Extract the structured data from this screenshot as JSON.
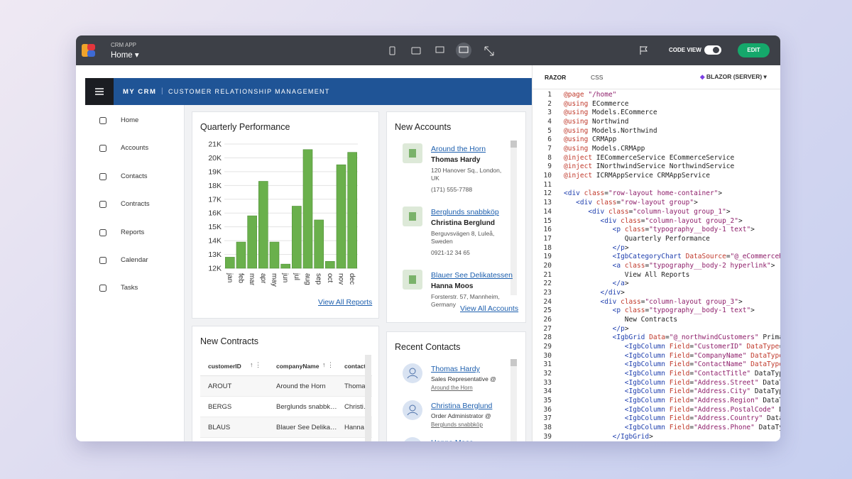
{
  "topbar": {
    "app_label": "CRM APP",
    "page": "Home",
    "code_view": "CODE VIEW",
    "edit": "EDIT"
  },
  "app": {
    "brand": "MY CRM",
    "subtitle": "CUSTOMER RELATIONSHIP MANAGEMENT",
    "nav": [
      "Home",
      "Accounts",
      "Contacts",
      "Contracts",
      "Reports",
      "Calendar",
      "Tasks"
    ]
  },
  "chart_data": {
    "type": "bar",
    "title": "Quarterly Performance",
    "categories": [
      "jan",
      "feb",
      "mar",
      "apr",
      "may",
      "jun",
      "jul",
      "aug",
      "sep",
      "oct",
      "nov",
      "dec"
    ],
    "values": [
      12800,
      13900,
      15800,
      18300,
      13900,
      12300,
      16500,
      20600,
      15500,
      12500,
      19500,
      20400
    ],
    "color": "#6ab04c",
    "ylim": [
      12000,
      21000
    ],
    "yticks": [
      {
        "value": 12000,
        "label": "12K"
      },
      {
        "value": 13000,
        "label": "13K"
      },
      {
        "value": 14000,
        "label": "14K"
      },
      {
        "value": 15000,
        "label": "15K"
      },
      {
        "value": 16000,
        "label": "16K"
      },
      {
        "value": 17000,
        "label": "17K"
      },
      {
        "value": 18000,
        "label": "18K"
      },
      {
        "value": 19000,
        "label": "19K"
      },
      {
        "value": 20000,
        "label": "20K"
      },
      {
        "value": 21000,
        "label": "21K"
      }
    ],
    "grid": true
  },
  "quarterly_card": {
    "link": "View All Reports"
  },
  "new_contracts": {
    "title": "New Contracts",
    "columns": [
      "customerID",
      "companyName",
      "contact"
    ],
    "rows": [
      [
        "AROUT",
        "Around the Horn",
        "Thomas Hardy"
      ],
      [
        "BERGS",
        "Berglunds snabbköp",
        "Christina Berglund"
      ],
      [
        "BLAUS",
        "Blauer See Delikatessen",
        "Hanna Moos"
      ]
    ]
  },
  "new_accounts": {
    "title": "New Accounts",
    "items": [
      {
        "company": "Around the Horn",
        "contact": "Thomas Hardy",
        "address": "120 Hanover Sq., London, UK",
        "phone": "(171) 555-7788"
      },
      {
        "company": "Berglunds snabbköp",
        "contact": "Christina Berglund",
        "address": "Berguvsvägen 8, Luleå, Sweden",
        "phone": "0921-12 34 65"
      },
      {
        "company": "Blauer See Delikatessen",
        "contact": "Hanna Moos",
        "address": "Forsterstr. 57, Mannheim, Germany"
      }
    ],
    "link": "View All Accounts"
  },
  "recent_contacts": {
    "title": "Recent Contacts",
    "items": [
      {
        "name": "Thomas Hardy",
        "title": "Sales Representative @",
        "company": "Around the Horn"
      },
      {
        "name": "Christina Berglund",
        "title": "Order Administrator @",
        "company": "Berglunds snabbköp"
      },
      {
        "name": "Hanna Moos"
      }
    ]
  },
  "code_panel": {
    "tabs": [
      "RAZOR",
      "CSS"
    ],
    "framework": "BLAZOR (SERVER)",
    "lines": [
      {
        "n": 1,
        "code": "@page \"/home\""
      },
      {
        "n": 2,
        "code": "@using ECommerce"
      },
      {
        "n": 3,
        "code": "@using Models.ECommerce"
      },
      {
        "n": 4,
        "code": "@using Northwind"
      },
      {
        "n": 5,
        "code": "@using Models.Northwind"
      },
      {
        "n": 6,
        "code": "@using CRMApp"
      },
      {
        "n": 7,
        "code": "@using Models.CRMApp"
      },
      {
        "n": 8,
        "code": "@inject IECommerceService ECommerceService"
      },
      {
        "n": 9,
        "code": "@inject INorthwindService NorthwindService"
      },
      {
        "n": 10,
        "code": "@inject ICRMAppService CRMAppService"
      },
      {
        "n": 11
      },
      {
        "n": 12,
        "code": "<div class=\"row-layout home-container\">"
      },
      {
        "n": 13,
        "code": "   <div class=\"row-layout group\">"
      },
      {
        "n": 14,
        "code": "      <div class=\"column-layout group_1\">"
      },
      {
        "n": 15,
        "code": "         <div class=\"column-layout group_2\">"
      },
      {
        "n": 16,
        "code": "            <p class=\"typography__body-1 text\">"
      },
      {
        "n": 17,
        "code": "               Quarterly Performance"
      },
      {
        "n": 18,
        "code": "            </p>"
      },
      {
        "n": 19,
        "code": "            <IgbCategoryChart DataSource=\"@_eCommerceReve"
      },
      {
        "n": 20,
        "code": "            <a class=\"typography__body-2 hyperlink\">"
      },
      {
        "n": 21,
        "code": "               View All Reports"
      },
      {
        "n": 22,
        "code": "            </a>"
      },
      {
        "n": 23,
        "code": "         </div>"
      },
      {
        "n": 24,
        "code": "         <div class=\"column-layout group_3\">"
      },
      {
        "n": 25,
        "code": "            <p class=\"typography__body-1 text\">"
      },
      {
        "n": 26,
        "code": "               New Contracts"
      },
      {
        "n": 27,
        "code": "            </p>"
      },
      {
        "n": 28,
        "code": "            <IgbGrid Data=\"@_northwindCustomers\" PrimaryK"
      },
      {
        "n": 29,
        "code": "               <IgbColumn Field=\"CustomerID\" DataType=\""
      },
      {
        "n": 30,
        "code": "               <IgbColumn Field=\"CompanyName\" DataType=\""
      },
      {
        "n": 31,
        "code": "               <IgbColumn Field=\"ContactName\" DataType=\""
      },
      {
        "n": 32,
        "code": "               <IgbColumn Field=\"ContactTitle\" DataType"
      },
      {
        "n": 33,
        "code": "               <IgbColumn Field=\"Address.Street\" DataType"
      },
      {
        "n": 34,
        "code": "               <IgbColumn Field=\"Address.City\" DataType"
      },
      {
        "n": 35,
        "code": "               <IgbColumn Field=\"Address.Region\" DataType"
      },
      {
        "n": 36,
        "code": "               <IgbColumn Field=\"Address.PostalCode\" Dat"
      },
      {
        "n": 37,
        "code": "               <IgbColumn Field=\"Address.Country\" DataTyp"
      },
      {
        "n": 38,
        "code": "               <IgbColumn Field=\"Address.Phone\" DataTyp"
      },
      {
        "n": 39,
        "code": "            </IgbGrid>"
      }
    ]
  }
}
